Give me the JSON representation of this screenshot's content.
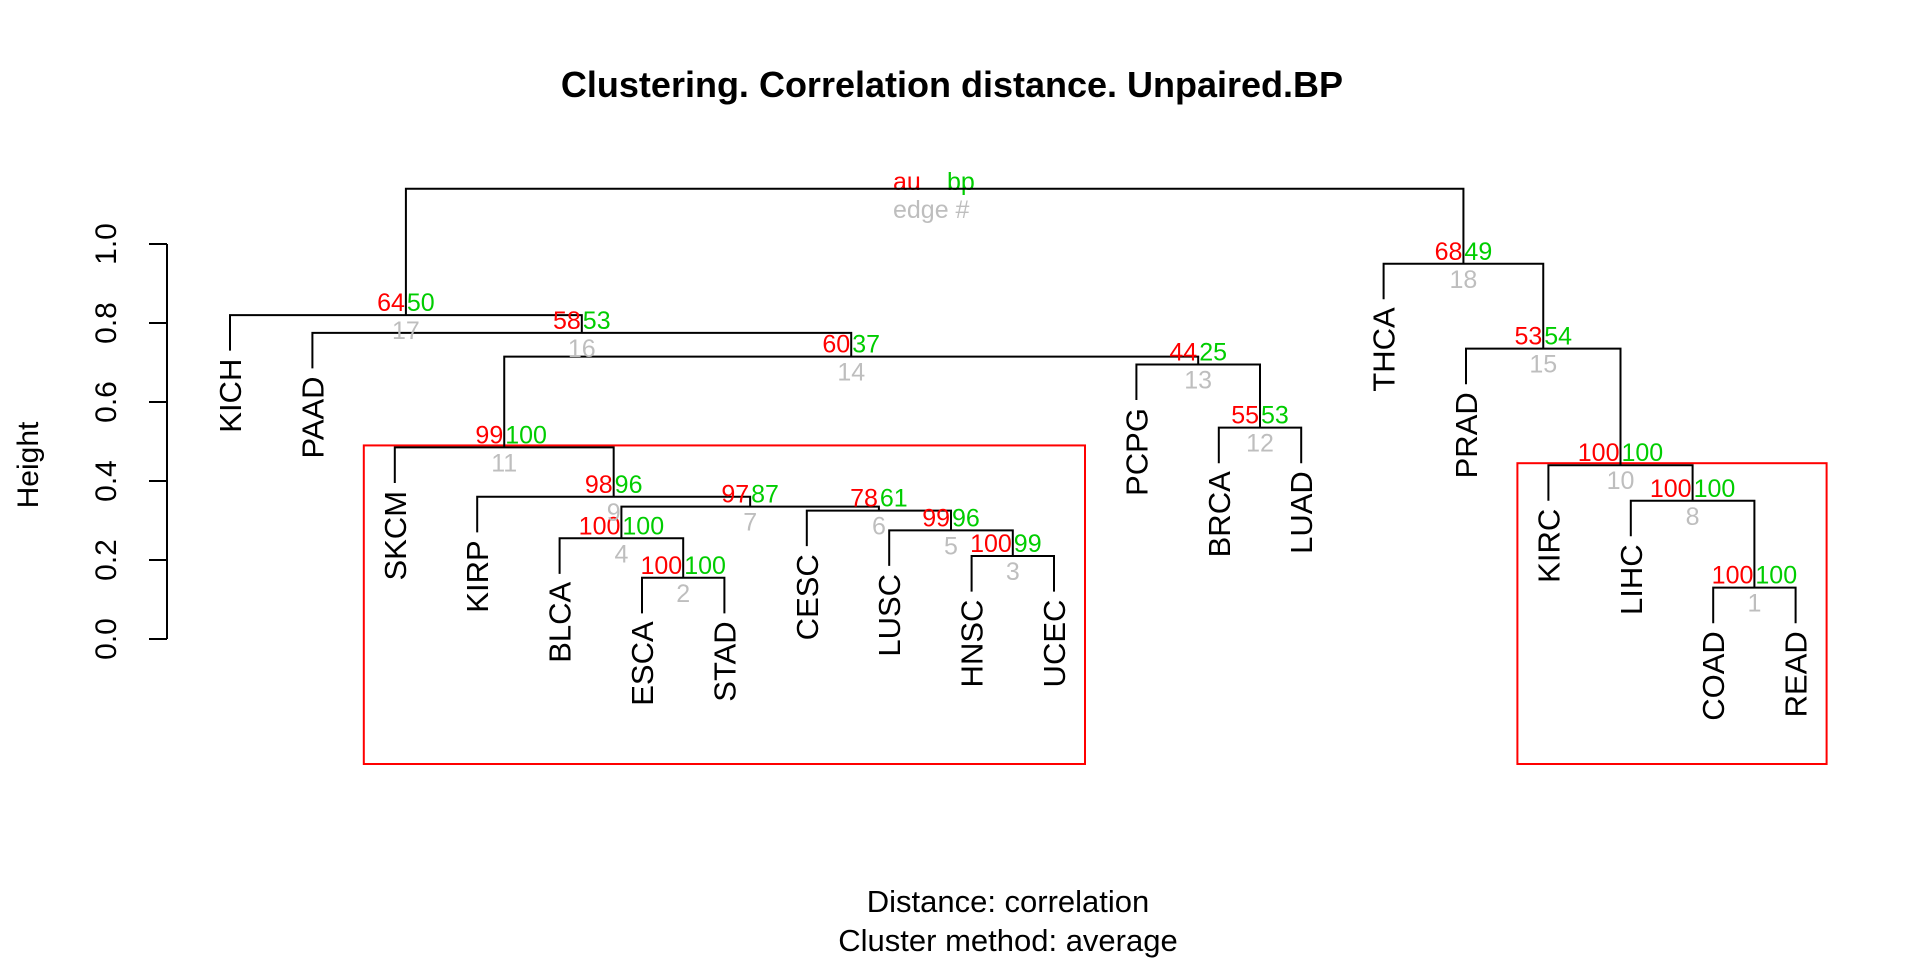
{
  "chart_data": {
    "type": "dendrogram",
    "title": "Clustering. Correlation distance. Unpaired.BP",
    "ylabel": "Height",
    "ylim": [
      0,
      1.2
    ],
    "yticks": [
      "0.0",
      "0.2",
      "0.4",
      "0.6",
      "0.8",
      "1.0"
    ],
    "xlabel_line1": "Distance:  correlation",
    "xlabel_line2": "Cluster method: average",
    "legend": {
      "au": "au",
      "bp": "bp",
      "edge": "edge #",
      "placement": "top-center"
    },
    "colors": {
      "au": "#ff0000",
      "bp": "#00cd00",
      "edge": "#bebebe",
      "rect": "#ff0000",
      "line": "#000000"
    },
    "leaves": [
      "KICH",
      "PAAD",
      "SKCM",
      "KIRP",
      "BLCA",
      "ESCA",
      "STAD",
      "CESC",
      "LUSC",
      "HNSC",
      "UCEC",
      "PCPG",
      "BRCA",
      "LUAD",
      "THCA",
      "PRAD",
      "KIRC",
      "LIHC",
      "COAD",
      "READ"
    ],
    "merges": [
      {
        "edge": 1,
        "left": "COAD",
        "right": "READ",
        "height": 0.13,
        "au": 100,
        "bp": 100
      },
      {
        "edge": 2,
        "left": "ESCA",
        "right": "STAD",
        "height": 0.155,
        "au": 100,
        "bp": 100
      },
      {
        "edge": 3,
        "left": "HNSC",
        "right": "UCEC",
        "height": 0.21,
        "au": 100,
        "bp": 99
      },
      {
        "edge": 4,
        "left": "BLCA",
        "right": 2,
        "height": 0.255,
        "au": 100,
        "bp": 100
      },
      {
        "edge": 5,
        "left": "LUSC",
        "right": 3,
        "height": 0.275,
        "au": 99,
        "bp": 96
      },
      {
        "edge": 6,
        "left": "CESC",
        "right": 5,
        "height": 0.325,
        "au": 78,
        "bp": 61
      },
      {
        "edge": 7,
        "left": 4,
        "right": 6,
        "height": 0.335,
        "au": 97,
        "bp": 87
      },
      {
        "edge": 8,
        "left": "LIHC",
        "right": 1,
        "height": 0.35,
        "au": 100,
        "bp": 100
      },
      {
        "edge": 9,
        "left": "KIRP",
        "right": 7,
        "height": 0.36,
        "au": 98,
        "bp": 96
      },
      {
        "edge": 10,
        "left": "KIRC",
        "right": 8,
        "height": 0.44,
        "au": 100,
        "bp": 100
      },
      {
        "edge": 11,
        "left": "SKCM",
        "right": 9,
        "height": 0.485,
        "au": 99,
        "bp": 100
      },
      {
        "edge": 12,
        "left": "BRCA",
        "right": "LUAD",
        "height": 0.535,
        "au": 55,
        "bp": 53
      },
      {
        "edge": 13,
        "left": "PCPG",
        "right": 12,
        "height": 0.695,
        "au": 44,
        "bp": 25
      },
      {
        "edge": 14,
        "left": 11,
        "right": 13,
        "height": 0.715,
        "au": 60,
        "bp": 37
      },
      {
        "edge": 15,
        "left": "PRAD",
        "right": 10,
        "height": 0.735,
        "au": 53,
        "bp": 54
      },
      {
        "edge": 16,
        "left": "PAAD",
        "right": 14,
        "height": 0.775,
        "au": 58,
        "bp": 53
      },
      {
        "edge": 17,
        "left": "KICH",
        "right": 16,
        "height": 0.82,
        "au": 64,
        "bp": 50
      },
      {
        "edge": 18,
        "left": "THCA",
        "right": 15,
        "height": 0.95,
        "au": 68,
        "bp": 49
      },
      {
        "edge": 19,
        "left": 17,
        "right": 18,
        "height": 1.14,
        "au": null,
        "bp": null
      }
    ],
    "highlighted_clusters": [
      {
        "edge": 11,
        "members": [
          "SKCM",
          "KIRP",
          "BLCA",
          "ESCA",
          "STAD",
          "CESC",
          "LUSC",
          "HNSC",
          "UCEC"
        ]
      },
      {
        "edge": 10,
        "members": [
          "KIRC",
          "LIHC",
          "COAD",
          "READ"
        ]
      }
    ]
  }
}
